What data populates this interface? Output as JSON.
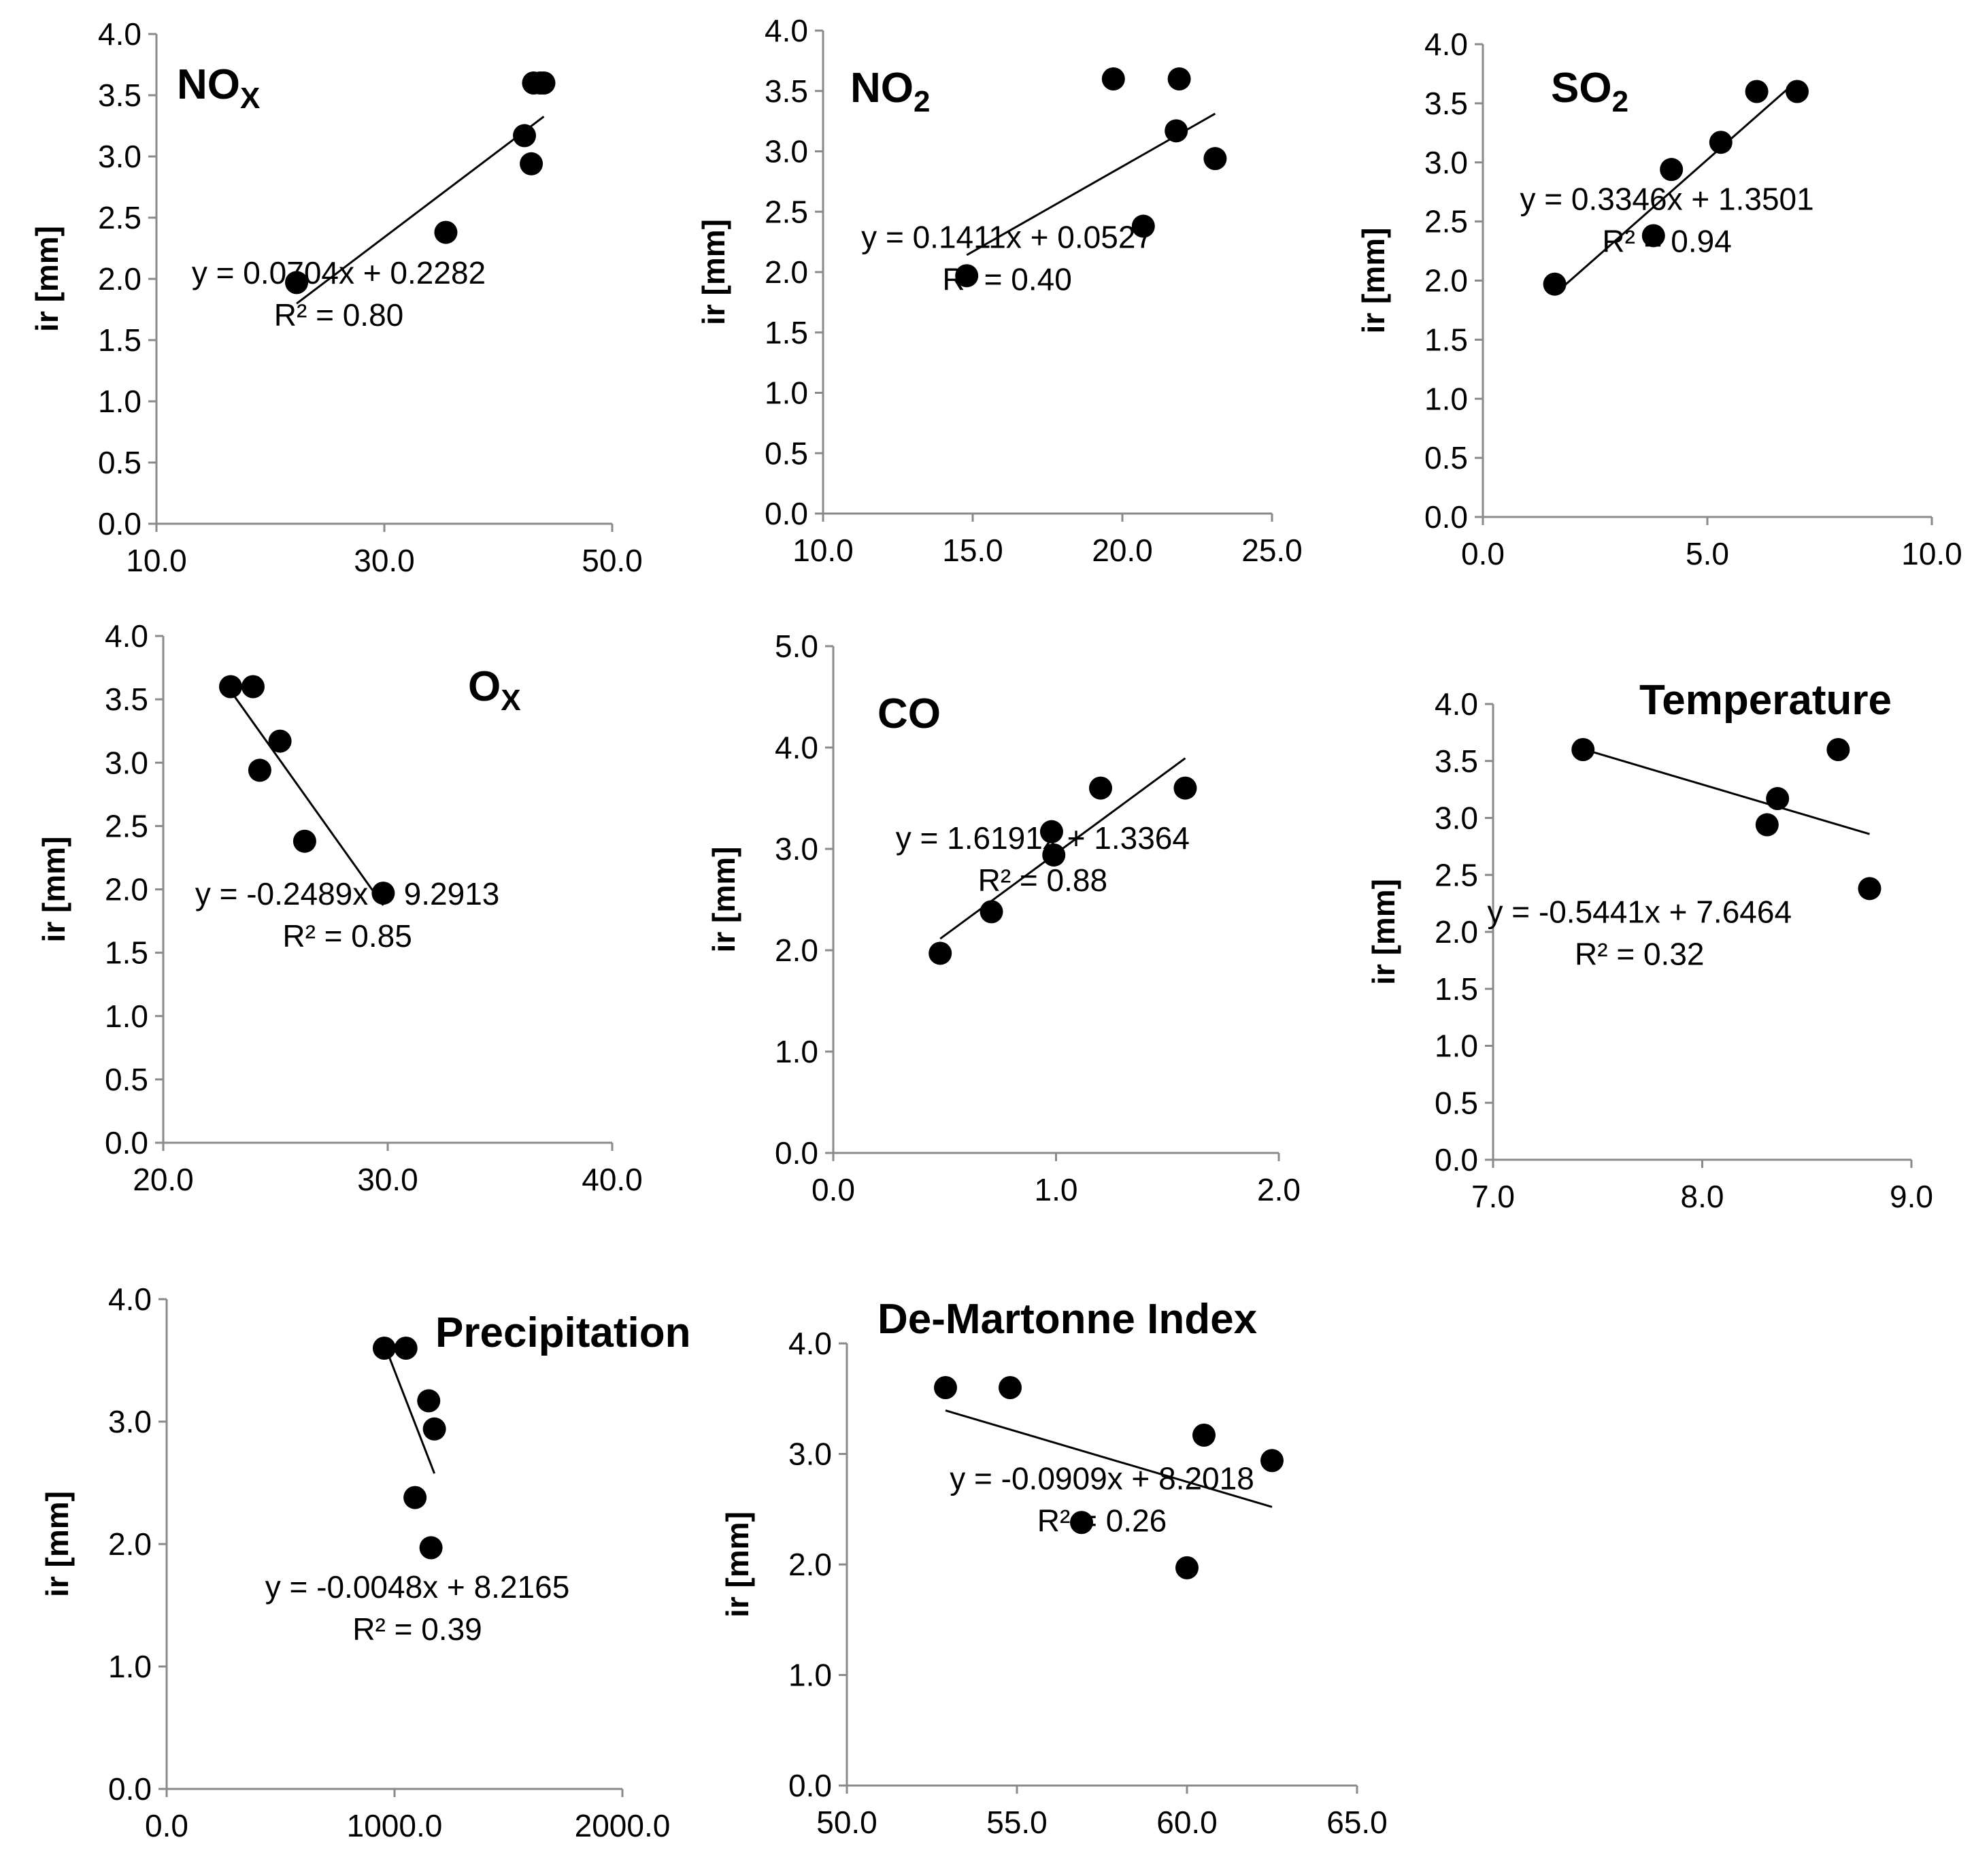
{
  "chart_data": [
    {
      "type": "scatter",
      "title": "NO",
      "title_sub": "X",
      "ylabel": "ir [mm]",
      "xlim": [
        10,
        50
      ],
      "ylim": [
        0,
        4
      ],
      "x_ticks": [
        "10.0",
        "30.0",
        "50.0"
      ],
      "y_ticks": [
        "0.0",
        "0.5",
        "1.0",
        "1.5",
        "2.0",
        "2.5",
        "3.0",
        "3.5",
        "4.0"
      ],
      "points": [
        [
          22.3,
          1.97
        ],
        [
          35.4,
          2.38
        ],
        [
          42.3,
          3.17
        ],
        [
          42.9,
          2.94
        ],
        [
          43.1,
          3.6
        ],
        [
          43.7,
          3.6
        ],
        [
          44.0,
          3.6
        ]
      ],
      "trendline": {
        "slope": 0.0704,
        "intercept": 0.2282,
        "x_range": [
          22.3,
          44.0
        ]
      },
      "equation": "y = 0.0704x + 0.2282",
      "r2": "R² = 0.80"
    },
    {
      "type": "scatter",
      "title": "NO",
      "title_sub": "2",
      "ylabel": "ir [mm]",
      "xlim": [
        10,
        25
      ],
      "ylim": [
        0,
        4
      ],
      "x_ticks": [
        "10.0",
        "15.0",
        "20.0",
        "25.0"
      ],
      "y_ticks": [
        "0.0",
        "0.5",
        "1.0",
        "1.5",
        "2.0",
        "2.5",
        "3.0",
        "3.5",
        "4.0"
      ],
      "points": [
        [
          14.8,
          1.97
        ],
        [
          19.7,
          3.6
        ],
        [
          20.7,
          2.38
        ],
        [
          21.8,
          3.17
        ],
        [
          21.9,
          3.6
        ],
        [
          23.1,
          2.94
        ]
      ],
      "trendline": {
        "slope": 0.1411,
        "intercept": 0.0527,
        "x_range": [
          14.8,
          23.1
        ]
      },
      "equation": "y = 0.1411x + 0.0527",
      "r2": "R² = 0.40"
    },
    {
      "type": "scatter",
      "title": "SO",
      "title_sub": "2",
      "ylabel": "ir [mm]",
      "xlim": [
        0,
        10
      ],
      "ylim": [
        0,
        4
      ],
      "x_ticks": [
        "0.0",
        "5.0",
        "10.0"
      ],
      "y_ticks": [
        "0.0",
        "0.5",
        "1.0",
        "1.5",
        "2.0",
        "2.5",
        "3.0",
        "3.5",
        "4.0"
      ],
      "points": [
        [
          1.6,
          1.97
        ],
        [
          3.8,
          2.38
        ],
        [
          4.2,
          2.94
        ],
        [
          5.3,
          3.17
        ],
        [
          6.1,
          3.6
        ],
        [
          7.0,
          3.6
        ]
      ],
      "trendline": {
        "slope": 0.3346,
        "intercept": 1.3501,
        "x_range": [
          1.6,
          7.0
        ]
      },
      "equation": "y = 0.3346x + 1.3501",
      "r2": "R² = 0.94"
    },
    {
      "type": "scatter",
      "title": "O",
      "title_sub": "X",
      "ylabel": "ir [mm]",
      "xlim": [
        20,
        40
      ],
      "ylim": [
        0,
        4
      ],
      "x_ticks": [
        "20.0",
        "30.0",
        "40.0"
      ],
      "y_ticks": [
        "0.0",
        "0.5",
        "1.0",
        "1.5",
        "2.0",
        "2.5",
        "3.0",
        "3.5",
        "4.0"
      ],
      "points": [
        [
          23.0,
          3.6
        ],
        [
          24.0,
          3.6
        ],
        [
          24.3,
          2.94
        ],
        [
          25.2,
          3.17
        ],
        [
          26.3,
          2.38
        ],
        [
          29.8,
          1.97
        ]
      ],
      "trendline": {
        "slope": -0.2489,
        "intercept": 9.2913,
        "x_range": [
          23.0,
          29.8
        ]
      },
      "equation": "y = -0.2489x + 9.2913",
      "r2": "R² = 0.85"
    },
    {
      "type": "scatter",
      "title": "CO",
      "title_sub": "",
      "ylabel": "ir [mm]",
      "xlim": [
        0,
        2
      ],
      "ylim": [
        0,
        5
      ],
      "x_ticks": [
        "0.0",
        "1.0",
        "2.0"
      ],
      "y_ticks": [
        "0.0",
        "1.0",
        "2.0",
        "3.0",
        "4.0",
        "5.0"
      ],
      "points": [
        [
          0.48,
          1.97
        ],
        [
          0.71,
          2.38
        ],
        [
          0.98,
          3.17
        ],
        [
          0.99,
          2.94
        ],
        [
          1.2,
          3.6
        ],
        [
          1.58,
          3.6
        ]
      ],
      "trendline": {
        "slope": 1.6191,
        "intercept": 1.3364,
        "x_range": [
          0.48,
          1.58
        ]
      },
      "equation": "y = 1.6191x + 1.3364",
      "r2": "R² = 0.88"
    },
    {
      "type": "scatter",
      "title": "Temperature",
      "title_sub": "",
      "ylabel": "ir [mm]",
      "xlim": [
        7,
        9
      ],
      "ylim": [
        0,
        4
      ],
      "x_ticks": [
        "7.0",
        "8.0",
        "9.0"
      ],
      "y_ticks": [
        "0.0",
        "0.5",
        "1.0",
        "1.5",
        "2.0",
        "2.5",
        "3.0",
        "3.5",
        "4.0"
      ],
      "points": [
        [
          7.43,
          3.6
        ],
        [
          8.31,
          2.94
        ],
        [
          8.36,
          3.17
        ],
        [
          8.65,
          3.6
        ],
        [
          8.8,
          2.38
        ]
      ],
      "trendline": {
        "slope": -0.5441,
        "intercept": 7.6464,
        "x_range": [
          7.43,
          8.8
        ]
      },
      "equation": "y = -0.5441x + 7.6464",
      "r2": "R² = 0.32"
    },
    {
      "type": "scatter",
      "title": "Precipitation",
      "title_sub": "",
      "ylabel": "ir [mm]",
      "xlim": [
        0,
        2000
      ],
      "ylim": [
        0,
        4
      ],
      "x_ticks": [
        "0.0",
        "1000.0",
        "2000.0"
      ],
      "y_ticks": [
        "0.0",
        "1.0",
        "2.0",
        "3.0",
        "4.0"
      ],
      "points": [
        [
          955,
          3.6
        ],
        [
          1050,
          3.6
        ],
        [
          1150,
          3.17
        ],
        [
          1175,
          2.94
        ],
        [
          1090,
          2.38
        ],
        [
          1160,
          1.97
        ]
      ],
      "trendline": {
        "slope": -0.0048,
        "intercept": 8.2165,
        "x_range": [
          955,
          1175
        ]
      },
      "equation": "y = -0.0048x + 8.2165",
      "r2": "R² = 0.39"
    },
    {
      "type": "scatter",
      "title": "De-Martonne Index",
      "title_sub": "",
      "ylabel": "ir [mm]",
      "xlim": [
        50,
        65
      ],
      "ylim": [
        0,
        4
      ],
      "x_ticks": [
        "50.0",
        "55.0",
        "60.0",
        "65.0"
      ],
      "y_ticks": [
        "0.0",
        "1.0",
        "2.0",
        "3.0",
        "4.0"
      ],
      "points": [
        [
          52.9,
          3.6
        ],
        [
          54.8,
          3.6
        ],
        [
          56.9,
          2.38
        ],
        [
          60.0,
          1.97
        ],
        [
          60.5,
          3.17
        ],
        [
          62.5,
          2.94
        ]
      ],
      "trendline": {
        "slope": -0.0909,
        "intercept": 8.2018,
        "x_range": [
          52.9,
          62.5
        ]
      },
      "equation": "y = -0.0909x + 8.2018",
      "r2": "R² = 0.26"
    }
  ]
}
